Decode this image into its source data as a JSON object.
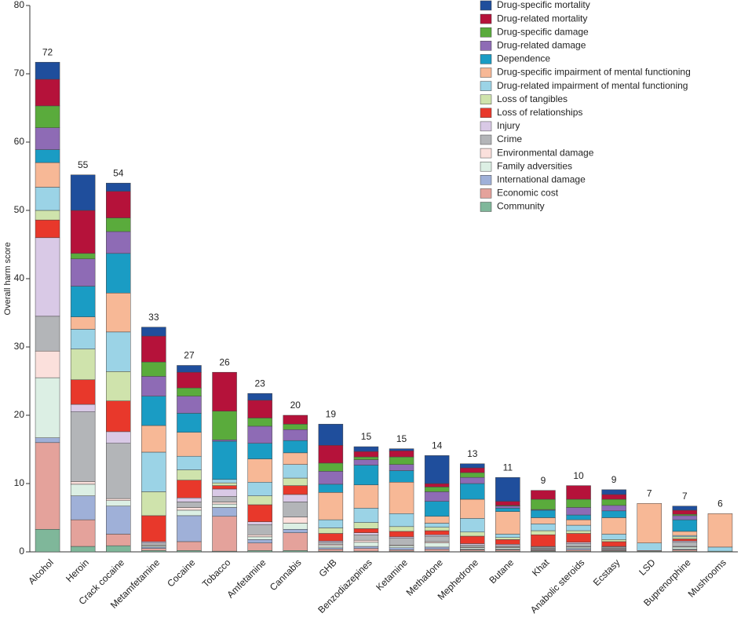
{
  "chart_data": {
    "type": "stacked-bar",
    "y_label": "Overall harm score",
    "categories": [
      "Alcohol",
      "Heroin",
      "Crack cocaine",
      "Metamfetamine",
      "Cocaine",
      "Tobacco",
      "Amfetamine",
      "Cannabis",
      "GHB",
      "Benzodiazepines",
      "Ketamine",
      "Methadone",
      "Mephedrone",
      "Butane",
      "Khat",
      "Anabolic steroids",
      "Ecstasy",
      "LSD",
      "Buprenorphine",
      "Mushrooms"
    ],
    "totals": [
      72,
      55,
      54,
      33,
      27,
      26,
      23,
      20,
      19,
      15,
      15,
      14,
      13,
      11,
      9,
      10,
      9,
      7,
      7,
      6
    ],
    "ylim": [
      0,
      80
    ],
    "yticks": [
      0,
      10,
      20,
      30,
      40,
      50,
      60,
      70,
      80
    ],
    "grid": false,
    "legend": "top-right",
    "series": [
      {
        "name": "Drug-specific mortality",
        "color": "#1f4e9c",
        "values": [
          2.5,
          5.2,
          1.2,
          1.3,
          1.0,
          0,
          1.0,
          0,
          3.1,
          0.7,
          0.3,
          4.1,
          0.6,
          3.5,
          0,
          0,
          0.7,
          0,
          0.6,
          0
        ]
      },
      {
        "name": "Drug-related mortality",
        "color": "#b5123a",
        "values": [
          3.9,
          6.3,
          3.9,
          3.8,
          2.3,
          5.7,
          2.6,
          1.3,
          2.6,
          0.8,
          0.9,
          0.5,
          0.7,
          0.6,
          1.3,
          2.0,
          0.7,
          0,
          0.6,
          0
        ]
      },
      {
        "name": "Drug-specific damage",
        "color": "#5aab3c",
        "values": [
          3.2,
          0.8,
          2.0,
          2.1,
          1.2,
          4.2,
          1.2,
          0.8,
          1.2,
          0.4,
          1.1,
          0.7,
          0.7,
          0.1,
          1.5,
          1.2,
          0.9,
          0,
          0.2,
          0
        ]
      },
      {
        "name": "Drug-related damage",
        "color": "#8e6bb5",
        "values": [
          3.2,
          4.0,
          3.2,
          2.9,
          2.5,
          0.2,
          2.5,
          1.6,
          1.9,
          0.8,
          0.9,
          1.4,
          0.9,
          0.3,
          0.1,
          1.1,
          0.8,
          0,
          0.6,
          0
        ]
      },
      {
        "name": "Dependence",
        "color": "#1a9cc4",
        "values": [
          1.9,
          4.5,
          5.8,
          4.3,
          2.8,
          5.6,
          2.3,
          1.8,
          1.2,
          2.9,
          1.7,
          2.2,
          2.3,
          0.5,
          1.1,
          0.7,
          1.0,
          0,
          1.7,
          0
        ]
      },
      {
        "name": "Drug-specific impairment of mental functioning",
        "color": "#f7b896",
        "values": [
          3.6,
          1.8,
          5.7,
          3.9,
          3.5,
          0,
          3.4,
          1.7,
          4.0,
          3.4,
          4.6,
          1.0,
          2.8,
          3.3,
          0.9,
          0.8,
          2.4,
          5.8,
          0.6,
          4.9
        ]
      },
      {
        "name": "Drug-related impairment of mental functioning",
        "color": "#9bd3e6",
        "values": [
          3.4,
          2.9,
          5.8,
          5.8,
          2.0,
          0.5,
          2.0,
          2.0,
          1.2,
          2.1,
          1.9,
          0.6,
          2.0,
          0.5,
          1.0,
          0.8,
          0.8,
          1.1,
          0.2,
          0.6
        ]
      },
      {
        "name": "Loss of tangibles",
        "color": "#cfe3ac",
        "values": [
          1.4,
          4.5,
          4.3,
          3.5,
          1.5,
          0.4,
          1.3,
          1.1,
          0.8,
          0.9,
          0.7,
          0.5,
          0.6,
          0.3,
          0.6,
          0.4,
          0.3,
          0,
          0.3,
          0
        ]
      },
      {
        "name": "Loss of relationships",
        "color": "#e8382b",
        "values": [
          2.6,
          3.6,
          4.5,
          3.8,
          2.6,
          0.5,
          2.5,
          1.3,
          1.1,
          0.6,
          0.8,
          0.6,
          1.1,
          0.7,
          1.7,
          1.3,
          0.7,
          0,
          0.3,
          0
        ]
      },
      {
        "name": "Injury",
        "color": "#d9c9e6",
        "values": [
          11.5,
          1.1,
          1.7,
          0.2,
          0.6,
          1.1,
          0.4,
          1.1,
          0.2,
          0.3,
          0.2,
          0.2,
          0.2,
          0.2,
          0.1,
          0.2,
          0.1,
          0,
          0.2,
          0
        ]
      },
      {
        "name": "Crime",
        "color": "#b3b5b8",
        "values": [
          5.1,
          10.2,
          8.1,
          0.3,
          0.8,
          0.8,
          1.5,
          2.2,
          0.3,
          0.8,
          1.0,
          0.8,
          0.3,
          0.2,
          0.2,
          0.4,
          0.2,
          0,
          0.6,
          0
        ]
      },
      {
        "name": "Environmental damage",
        "color": "#fbe0dc",
        "values": [
          3.9,
          0.4,
          0.3,
          0.1,
          0.4,
          0.3,
          0.3,
          0.9,
          0.2,
          0.3,
          0.1,
          0.2,
          0.1,
          0.1,
          0.1,
          0.1,
          0.1,
          0,
          0.1,
          0
        ]
      },
      {
        "name": "Family adversities",
        "color": "#dcefe4",
        "values": [
          8.8,
          1.7,
          0.8,
          0.2,
          0.8,
          0.5,
          0.4,
          0.9,
          0.3,
          0.6,
          0.3,
          0.6,
          0.2,
          0.2,
          0.1,
          0.2,
          0.1,
          0,
          0.3,
          0
        ]
      },
      {
        "name": "International damage",
        "color": "#9fb0d8",
        "values": [
          0.7,
          3.5,
          4.1,
          0.2,
          3.8,
          1.3,
          0.5,
          0.5,
          0.2,
          0.3,
          0.3,
          0.3,
          0.1,
          0.1,
          0.1,
          0.2,
          0.1,
          0,
          0.1,
          0
        ]
      },
      {
        "name": "Economic cost",
        "color": "#e4a29b",
        "values": [
          12.7,
          3.9,
          1.7,
          0.3,
          1.3,
          5.1,
          1.1,
          2.6,
          0.3,
          0.4,
          0.2,
          0.3,
          0.2,
          0.2,
          0.1,
          0.2,
          0.1,
          0.1,
          0.2,
          0
        ]
      },
      {
        "name": "Community",
        "color": "#7fb79a",
        "values": [
          3.3,
          0.8,
          0.9,
          0.2,
          0.2,
          0.1,
          0.2,
          0.2,
          0.1,
          0.1,
          0.1,
          0.1,
          0.1,
          0.1,
          0.1,
          0.1,
          0.1,
          0.1,
          0.1,
          0.1
        ]
      }
    ]
  }
}
